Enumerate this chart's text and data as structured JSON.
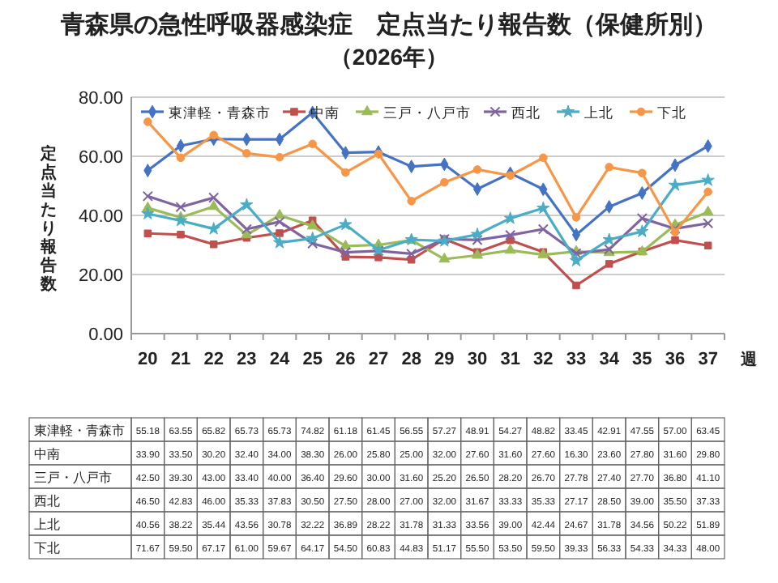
{
  "chart_data": {
    "type": "line",
    "title": "青森県の急性呼吸器感染症　定点当たり報告数（保健所別）",
    "subtitle": "（2026年）",
    "ylabel": "定点当たり報告数",
    "xlabel": "週",
    "categories": [
      "20",
      "21",
      "22",
      "23",
      "24",
      "25",
      "26",
      "27",
      "28",
      "29",
      "30",
      "31",
      "32",
      "33",
      "34",
      "35",
      "36",
      "37"
    ],
    "ylim": [
      0,
      80
    ],
    "yticks": [
      {
        "value": 0,
        "label": "0.00"
      },
      {
        "value": 20,
        "label": "20.00"
      },
      {
        "value": 40,
        "label": "40.00"
      },
      {
        "value": 60,
        "label": "60.00"
      },
      {
        "value": 80,
        "label": "80.00"
      }
    ],
    "grid": "y",
    "legend": "top",
    "series": [
      {
        "name": "東津軽・青森市",
        "color": "#4472c4",
        "marker": "diamond",
        "values": [
          55.18,
          63.55,
          65.82,
          65.73,
          65.73,
          74.82,
          61.18,
          61.45,
          56.55,
          57.27,
          48.91,
          54.27,
          48.82,
          33.45,
          42.91,
          47.55,
          57.0,
          63.45
        ],
        "value_labels": [
          "55.18",
          "63.55",
          "65.82",
          "65.73",
          "65.73",
          "74.82",
          "61.18",
          "61.45",
          "56.55",
          "57.27",
          "48.91",
          "54.27",
          "48.82",
          "33.45",
          "42.91",
          "47.55",
          "57.00",
          "63.45"
        ]
      },
      {
        "name": "中南",
        "color": "#c0504d",
        "marker": "square",
        "values": [
          33.9,
          33.5,
          30.2,
          32.4,
          34.0,
          38.3,
          26.0,
          25.8,
          25.0,
          32.0,
          27.6,
          31.6,
          27.6,
          16.3,
          23.6,
          27.8,
          31.6,
          29.8
        ],
        "value_labels": [
          "33.90",
          "33.50",
          "30.20",
          "32.40",
          "34.00",
          "38.30",
          "26.00",
          "25.80",
          "25.00",
          "32.00",
          "27.60",
          "31.60",
          "27.60",
          "16.30",
          "23.60",
          "27.80",
          "31.60",
          "29.80"
        ]
      },
      {
        "name": "三戸・八戸市",
        "color": "#9bbb59",
        "marker": "triangle",
        "values": [
          42.5,
          39.3,
          43.0,
          33.4,
          40.0,
          36.4,
          29.6,
          30.0,
          31.6,
          25.2,
          26.5,
          28.2,
          26.7,
          27.78,
          27.4,
          27.7,
          36.8,
          41.1
        ],
        "value_labels": [
          "42.50",
          "39.30",
          "43.00",
          "33.40",
          "40.00",
          "36.40",
          "29.60",
          "30.00",
          "31.60",
          "25.20",
          "26.50",
          "28.20",
          "26.70",
          "27.78",
          "27.40",
          "27.70",
          "36.80",
          "41.10"
        ]
      },
      {
        "name": "西北",
        "color": "#8064a2",
        "marker": "cross",
        "values": [
          46.5,
          42.83,
          46.0,
          35.33,
          37.83,
          30.5,
          27.5,
          28.0,
          27.0,
          32.0,
          31.67,
          33.33,
          35.33,
          27.17,
          28.5,
          39.0,
          35.5,
          37.33
        ],
        "value_labels": [
          "46.50",
          "42.83",
          "46.00",
          "35.33",
          "37.83",
          "30.50",
          "27.50",
          "28.00",
          "27.00",
          "32.00",
          "31.67",
          "33.33",
          "35.33",
          "27.17",
          "28.50",
          "39.00",
          "35.50",
          "37.33"
        ]
      },
      {
        "name": "上北",
        "color": "#4bacc6",
        "marker": "star",
        "values": [
          40.56,
          38.22,
          35.44,
          43.56,
          30.78,
          32.22,
          36.89,
          28.22,
          31.78,
          31.33,
          33.56,
          39.0,
          42.44,
          24.67,
          31.78,
          34.56,
          50.22,
          51.89
        ],
        "value_labels": [
          "40.56",
          "38.22",
          "35.44",
          "43.56",
          "30.78",
          "32.22",
          "36.89",
          "28.22",
          "31.78",
          "31.33",
          "33.56",
          "39.00",
          "42.44",
          "24.67",
          "31.78",
          "34.56",
          "50.22",
          "51.89"
        ]
      },
      {
        "name": "下北",
        "color": "#f79646",
        "marker": "circle",
        "values": [
          71.67,
          59.5,
          67.17,
          61.0,
          59.67,
          64.17,
          54.5,
          60.83,
          44.83,
          51.17,
          55.5,
          53.5,
          59.5,
          39.33,
          56.33,
          54.33,
          34.33,
          48.0
        ],
        "value_labels": [
          "71.67",
          "59.50",
          "67.17",
          "61.00",
          "59.67",
          "64.17",
          "54.50",
          "60.83",
          "44.83",
          "51.17",
          "55.50",
          "53.50",
          "59.50",
          "39.33",
          "56.33",
          "54.33",
          "34.33",
          "48.00"
        ]
      }
    ]
  }
}
